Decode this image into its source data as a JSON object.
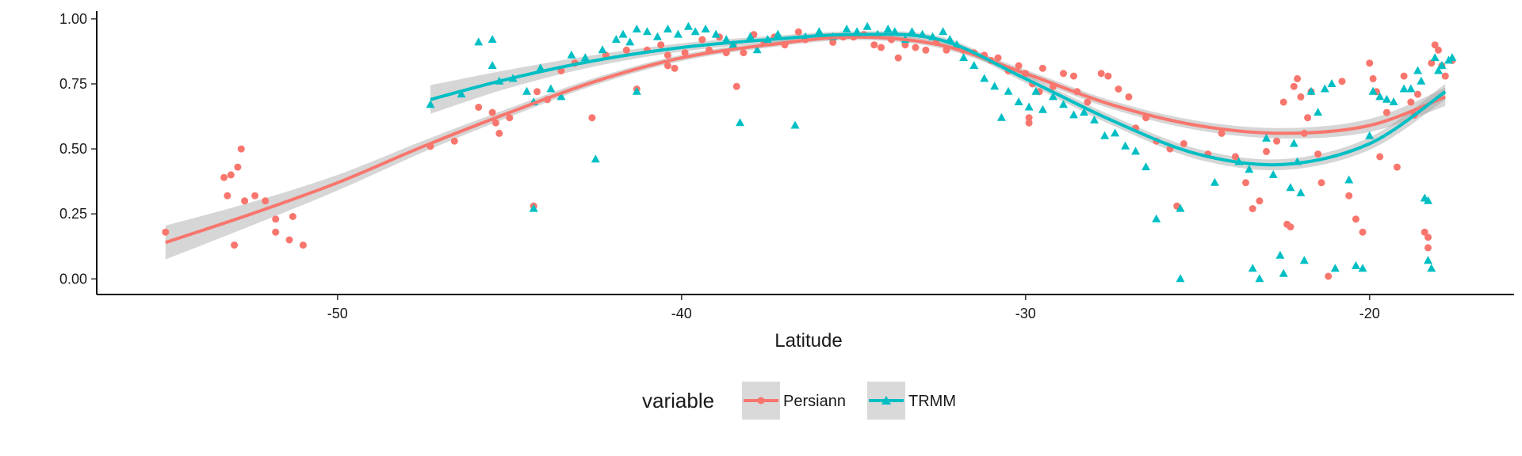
{
  "chart_data": {
    "type": "scatter",
    "title": "",
    "xlabel": "Latitude",
    "ylabel": "",
    "xlim": [
      -57,
      -15.8
    ],
    "ylim": [
      -0.06,
      1.03
    ],
    "x_ticks": [
      -50,
      -40,
      -30,
      -20
    ],
    "x_tick_labels": [
      "-50",
      "-40",
      "-30",
      "-20"
    ],
    "y_ticks": [
      0,
      0.25,
      0.5,
      0.75,
      1
    ],
    "y_tick_labels": [
      "0.00",
      "0.25",
      "0.50",
      "0.75",
      "1.00"
    ],
    "grid": false,
    "legend": {
      "title": "variable",
      "position": "bottom"
    },
    "series": [
      {
        "name": "Persiann",
        "color": "#F8766D",
        "marker": "circle",
        "points": [
          [
            -55,
            0.18
          ],
          [
            -53.3,
            0.39
          ],
          [
            -53.1,
            0.4
          ],
          [
            -53.2,
            0.32
          ],
          [
            -52.9,
            0.43
          ],
          [
            -52.8,
            0.5
          ],
          [
            -53.0,
            0.13
          ],
          [
            -52.7,
            0.3
          ],
          [
            -52.4,
            0.32
          ],
          [
            -52.1,
            0.3
          ],
          [
            -51.8,
            0.23
          ],
          [
            -51.8,
            0.18
          ],
          [
            -51.4,
            0.15
          ],
          [
            -51.3,
            0.24
          ],
          [
            -51.0,
            0.13
          ],
          [
            -47.3,
            0.51
          ],
          [
            -46.6,
            0.53
          ],
          [
            -45.9,
            0.66
          ],
          [
            -45.5,
            0.64
          ],
          [
            -45.4,
            0.6
          ],
          [
            -45.3,
            0.56
          ],
          [
            -45.0,
            0.62
          ],
          [
            -44.3,
            0.28
          ],
          [
            -44.2,
            0.72
          ],
          [
            -43.9,
            0.69
          ],
          [
            -43.5,
            0.8
          ],
          [
            -43.1,
            0.83
          ],
          [
            -42.6,
            0.62
          ],
          [
            -42.2,
            0.86
          ],
          [
            -41.6,
            0.88
          ],
          [
            -41.3,
            0.73
          ],
          [
            -41.0,
            0.88
          ],
          [
            -40.6,
            0.9
          ],
          [
            -40.4,
            0.86
          ],
          [
            -40.4,
            0.82
          ],
          [
            -40.2,
            0.81
          ],
          [
            -39.9,
            0.87
          ],
          [
            -39.4,
            0.92
          ],
          [
            -39.2,
            0.88
          ],
          [
            -38.9,
            0.93
          ],
          [
            -38.7,
            0.87
          ],
          [
            -38.5,
            0.9
          ],
          [
            -38.4,
            0.74
          ],
          [
            -38.2,
            0.87
          ],
          [
            -37.9,
            0.94
          ],
          [
            -37.6,
            0.91
          ],
          [
            -37.3,
            0.93
          ],
          [
            -37.0,
            0.9
          ],
          [
            -36.6,
            0.95
          ],
          [
            -36.4,
            0.92
          ],
          [
            -36.0,
            0.94
          ],
          [
            -35.6,
            0.91
          ],
          [
            -35.3,
            0.93
          ],
          [
            -35.0,
            0.93
          ],
          [
            -34.7,
            0.94
          ],
          [
            -34.4,
            0.9
          ],
          [
            -34.2,
            0.89
          ],
          [
            -33.9,
            0.92
          ],
          [
            -33.7,
            0.85
          ],
          [
            -33.5,
            0.9
          ],
          [
            -33.2,
            0.89
          ],
          [
            -32.9,
            0.88
          ],
          [
            -32.6,
            0.91
          ],
          [
            -32.3,
            0.88
          ],
          [
            -32.0,
            0.89
          ],
          [
            -31.8,
            0.88
          ],
          [
            -31.5,
            0.87
          ],
          [
            -31.2,
            0.86
          ],
          [
            -31.0,
            0.84
          ],
          [
            -30.8,
            0.85
          ],
          [
            -30.5,
            0.8
          ],
          [
            -30.2,
            0.82
          ],
          [
            -30.0,
            0.79
          ],
          [
            -29.8,
            0.75
          ],
          [
            -29.9,
            0.62
          ],
          [
            -29.9,
            0.6
          ],
          [
            -29.6,
            0.72
          ],
          [
            -29.5,
            0.81
          ],
          [
            -29.2,
            0.74
          ],
          [
            -28.9,
            0.79
          ],
          [
            -28.6,
            0.78
          ],
          [
            -28.5,
            0.72
          ],
          [
            -28.2,
            0.68
          ],
          [
            -27.8,
            0.79
          ],
          [
            -27.6,
            0.78
          ],
          [
            -27.3,
            0.73
          ],
          [
            -27.0,
            0.7
          ],
          [
            -26.8,
            0.58
          ],
          [
            -26.5,
            0.62
          ],
          [
            -26.2,
            0.53
          ],
          [
            -25.8,
            0.5
          ],
          [
            -25.6,
            0.28
          ],
          [
            -25.4,
            0.52
          ],
          [
            -24.7,
            0.48
          ],
          [
            -24.3,
            0.56
          ],
          [
            -23.9,
            0.47
          ],
          [
            -23.6,
            0.37
          ],
          [
            -23.4,
            0.27
          ],
          [
            -23.2,
            0.3
          ],
          [
            -23.0,
            0.49
          ],
          [
            -22.7,
            0.53
          ],
          [
            -22.5,
            0.68
          ],
          [
            -22.4,
            0.21
          ],
          [
            -22.3,
            0.2
          ],
          [
            -22.2,
            0.74
          ],
          [
            -22.1,
            0.77
          ],
          [
            -22.0,
            0.7
          ],
          [
            -21.8,
            0.62
          ],
          [
            -21.7,
            0.72
          ],
          [
            -21.9,
            0.56
          ],
          [
            -21.5,
            0.48
          ],
          [
            -21.4,
            0.37
          ],
          [
            -21.2,
            0.01
          ],
          [
            -20.8,
            0.76
          ],
          [
            -20.6,
            0.32
          ],
          [
            -20.4,
            0.23
          ],
          [
            -20.2,
            0.18
          ],
          [
            -20.0,
            0.83
          ],
          [
            -19.9,
            0.77
          ],
          [
            -19.8,
            0.72
          ],
          [
            -19.7,
            0.47
          ],
          [
            -19.5,
            0.64
          ],
          [
            -19.2,
            0.43
          ],
          [
            -19.0,
            0.78
          ],
          [
            -18.8,
            0.68
          ],
          [
            -18.7,
            0.63
          ],
          [
            -18.6,
            0.71
          ],
          [
            -18.4,
            0.18
          ],
          [
            -18.3,
            0.16
          ],
          [
            -18.3,
            0.12
          ],
          [
            -18.2,
            0.83
          ],
          [
            -18.1,
            0.9
          ],
          [
            -18.0,
            0.88
          ],
          [
            -17.9,
            0.82
          ],
          [
            -17.8,
            0.78
          ],
          [
            -17.6,
            0.84
          ]
        ],
        "smooth": [
          [
            -55.0,
            0.14
          ],
          [
            -52.5,
            0.25
          ],
          [
            -50.0,
            0.37
          ],
          [
            -47.5,
            0.51
          ],
          [
            -45.0,
            0.64
          ],
          [
            -42.5,
            0.76
          ],
          [
            -40.0,
            0.85
          ],
          [
            -37.5,
            0.9
          ],
          [
            -35.0,
            0.93
          ],
          [
            -32.5,
            0.9
          ],
          [
            -30.0,
            0.79
          ],
          [
            -27.5,
            0.67
          ],
          [
            -25.0,
            0.59
          ],
          [
            -22.5,
            0.56
          ],
          [
            -20.0,
            0.59
          ],
          [
            -17.8,
            0.7
          ]
        ],
        "band_width": [
          0.065,
          0.045,
          0.03,
          0.022,
          0.017,
          0.014,
          0.012,
          0.011,
          0.011,
          0.012,
          0.014,
          0.016,
          0.018,
          0.02,
          0.025,
          0.035
        ]
      },
      {
        "name": "TRMM",
        "color": "#00BFC4",
        "marker": "triangle",
        "points": [
          [
            -47.3,
            0.67
          ],
          [
            -46.4,
            0.71
          ],
          [
            -45.9,
            0.91
          ],
          [
            -45.5,
            0.92
          ],
          [
            -45.5,
            0.82
          ],
          [
            -45.3,
            0.76
          ],
          [
            -44.9,
            0.77
          ],
          [
            -44.5,
            0.72
          ],
          [
            -44.3,
            0.68
          ],
          [
            -44.3,
            0.27
          ],
          [
            -44.1,
            0.81
          ],
          [
            -43.8,
            0.73
          ],
          [
            -43.5,
            0.7
          ],
          [
            -43.2,
            0.86
          ],
          [
            -42.8,
            0.85
          ],
          [
            -42.5,
            0.46
          ],
          [
            -42.3,
            0.88
          ],
          [
            -41.9,
            0.92
          ],
          [
            -41.7,
            0.94
          ],
          [
            -41.5,
            0.91
          ],
          [
            -41.3,
            0.96
          ],
          [
            -41.3,
            0.72
          ],
          [
            -41.0,
            0.95
          ],
          [
            -40.7,
            0.93
          ],
          [
            -40.4,
            0.96
          ],
          [
            -40.1,
            0.94
          ],
          [
            -39.8,
            0.97
          ],
          [
            -39.6,
            0.95
          ],
          [
            -39.3,
            0.96
          ],
          [
            -39.0,
            0.94
          ],
          [
            -38.7,
            0.92
          ],
          [
            -38.5,
            0.9
          ],
          [
            -38.3,
            0.6
          ],
          [
            -38.0,
            0.93
          ],
          [
            -37.8,
            0.88
          ],
          [
            -37.5,
            0.92
          ],
          [
            -37.2,
            0.94
          ],
          [
            -36.7,
            0.59
          ],
          [
            -36.4,
            0.93
          ],
          [
            -36.0,
            0.95
          ],
          [
            -35.6,
            0.93
          ],
          [
            -35.2,
            0.96
          ],
          [
            -34.9,
            0.95
          ],
          [
            -34.6,
            0.97
          ],
          [
            -34.3,
            0.94
          ],
          [
            -34.0,
            0.96
          ],
          [
            -33.8,
            0.95
          ],
          [
            -33.5,
            0.92
          ],
          [
            -33.3,
            0.95
          ],
          [
            -33.0,
            0.94
          ],
          [
            -32.7,
            0.93
          ],
          [
            -32.4,
            0.95
          ],
          [
            -32.2,
            0.92
          ],
          [
            -32.0,
            0.9
          ],
          [
            -31.8,
            0.85
          ],
          [
            -31.5,
            0.82
          ],
          [
            -31.2,
            0.77
          ],
          [
            -30.9,
            0.74
          ],
          [
            -30.7,
            0.62
          ],
          [
            -30.5,
            0.72
          ],
          [
            -30.2,
            0.68
          ],
          [
            -29.9,
            0.66
          ],
          [
            -29.7,
            0.72
          ],
          [
            -29.5,
            0.65
          ],
          [
            -29.2,
            0.7
          ],
          [
            -28.9,
            0.67
          ],
          [
            -28.6,
            0.63
          ],
          [
            -28.3,
            0.64
          ],
          [
            -28.0,
            0.61
          ],
          [
            -27.7,
            0.55
          ],
          [
            -27.4,
            0.56
          ],
          [
            -27.1,
            0.51
          ],
          [
            -26.8,
            0.49
          ],
          [
            -26.5,
            0.43
          ],
          [
            -26.2,
            0.23
          ],
          [
            -25.5,
            0.27
          ],
          [
            -25.5,
            0.0
          ],
          [
            -24.5,
            0.37
          ],
          [
            -23.8,
            0.45
          ],
          [
            -23.5,
            0.42
          ],
          [
            -23.4,
            0.04
          ],
          [
            -23.2,
            0.0
          ],
          [
            -23.0,
            0.54
          ],
          [
            -22.8,
            0.4
          ],
          [
            -22.6,
            0.09
          ],
          [
            -22.5,
            0.02
          ],
          [
            -22.3,
            0.35
          ],
          [
            -22.2,
            0.52
          ],
          [
            -22.1,
            0.45
          ],
          [
            -22.0,
            0.33
          ],
          [
            -21.9,
            0.07
          ],
          [
            -21.7,
            0.72
          ],
          [
            -21.5,
            0.64
          ],
          [
            -21.3,
            0.73
          ],
          [
            -21.1,
            0.75
          ],
          [
            -21.0,
            0.04
          ],
          [
            -20.6,
            0.38
          ],
          [
            -20.4,
            0.05
          ],
          [
            -20.2,
            0.04
          ],
          [
            -20.0,
            0.55
          ],
          [
            -19.9,
            0.72
          ],
          [
            -19.7,
            0.7
          ],
          [
            -19.5,
            0.69
          ],
          [
            -19.3,
            0.68
          ],
          [
            -19.0,
            0.73
          ],
          [
            -18.8,
            0.73
          ],
          [
            -18.6,
            0.8
          ],
          [
            -18.5,
            0.76
          ],
          [
            -18.4,
            0.31
          ],
          [
            -18.3,
            0.3
          ],
          [
            -18.3,
            0.07
          ],
          [
            -18.2,
            0.04
          ],
          [
            -18.1,
            0.85
          ],
          [
            -18.0,
            0.8
          ],
          [
            -17.9,
            0.82
          ],
          [
            -17.7,
            0.84
          ],
          [
            -17.6,
            0.85
          ]
        ],
        "smooth": [
          [
            -47.3,
            0.69
          ],
          [
            -45.0,
            0.77
          ],
          [
            -42.5,
            0.84
          ],
          [
            -40.0,
            0.89
          ],
          [
            -37.5,
            0.92
          ],
          [
            -35.0,
            0.94
          ],
          [
            -32.5,
            0.92
          ],
          [
            -30.0,
            0.77
          ],
          [
            -27.5,
            0.61
          ],
          [
            -25.0,
            0.48
          ],
          [
            -22.5,
            0.44
          ],
          [
            -20.0,
            0.52
          ],
          [
            -17.8,
            0.72
          ]
        ],
        "band_width": [
          0.055,
          0.035,
          0.022,
          0.016,
          0.013,
          0.012,
          0.013,
          0.016,
          0.018,
          0.02,
          0.021,
          0.024,
          0.03
        ]
      }
    ]
  }
}
